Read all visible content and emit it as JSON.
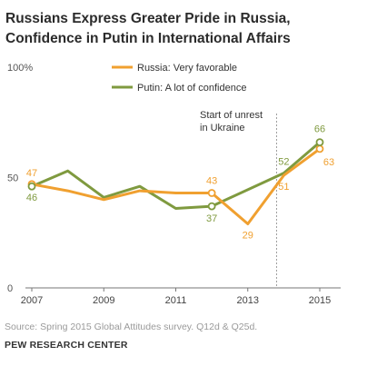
{
  "chart_data": {
    "type": "line",
    "title": [
      "Russians Express Greater Pride in Russia,",
      "Confidence in Putin in International Affairs"
    ],
    "ylim": [
      0,
      100
    ],
    "xlim": [
      2007,
      2015
    ],
    "y_ticks": [
      {
        "value": 100,
        "label": "100%"
      },
      {
        "value": 50,
        "label": "50"
      },
      {
        "value": 0,
        "label": "0"
      }
    ],
    "x_ticks": [
      {
        "value": 2007,
        "label": "2007"
      },
      {
        "value": 2009,
        "label": "2009"
      },
      {
        "value": 2011,
        "label": "2011"
      },
      {
        "value": 2013,
        "label": "2013"
      },
      {
        "value": 2015,
        "label": "2015"
      }
    ],
    "grid": false,
    "legend": "top-center",
    "series": [
      {
        "name": "Russia: Very favorable",
        "color": "#f0a030",
        "x": [
          2007,
          2008,
          2009,
          2010,
          2011,
          2012,
          2013,
          2014,
          2015
        ],
        "y": [
          47,
          44,
          40,
          44,
          43,
          43,
          29,
          51,
          63
        ],
        "labels": [
          {
            "x": 2007,
            "y": 47,
            "text": "47"
          },
          {
            "x": 2012,
            "y": 43,
            "text": "43"
          },
          {
            "x": 2013,
            "y": 29,
            "text": "29"
          },
          {
            "x": 2014,
            "y": 51,
            "text": "51"
          },
          {
            "x": 2015,
            "y": 63,
            "text": "63"
          }
        ],
        "markers": [
          2007,
          2012,
          2015
        ]
      },
      {
        "name": "Putin: A lot of confidence",
        "color": "#7f9a3f",
        "x": [
          2007,
          2008,
          2009,
          2010,
          2011,
          2012,
          2014,
          2015
        ],
        "y": [
          46,
          53,
          41,
          46,
          36,
          37,
          52,
          66
        ],
        "labels": [
          {
            "x": 2007,
            "y": 46,
            "text": "46"
          },
          {
            "x": 2012,
            "y": 37,
            "text": "37"
          },
          {
            "x": 2014,
            "y": 52,
            "text": "52"
          },
          {
            "x": 2015,
            "y": 66,
            "text": "66"
          }
        ],
        "markers": [
          2007,
          2012,
          2015
        ]
      }
    ],
    "annotations": [
      {
        "type": "vline",
        "x": 2013.8,
        "text": [
          "Start of unrest",
          "in Ukraine"
        ]
      }
    ]
  },
  "source": "Source: Spring 2015 Global Attitudes survey. Q12d & Q25d.",
  "organization": "PEW RESEARCH CENTER"
}
